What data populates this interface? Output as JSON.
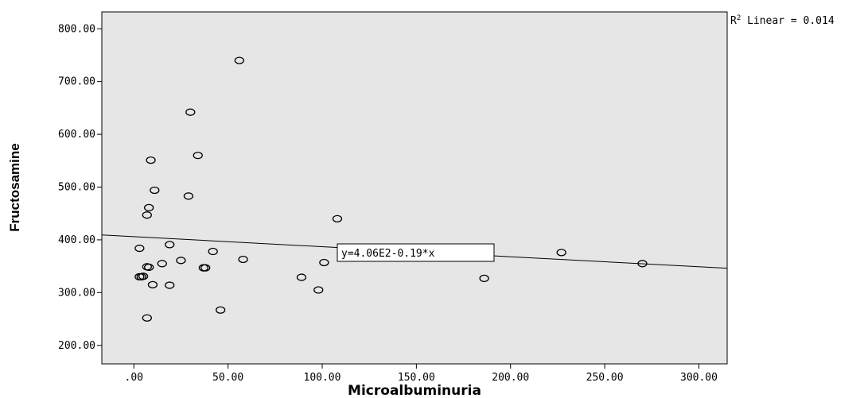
{
  "chart_data": {
    "type": "scatter",
    "xlabel": "Microalbuminuria",
    "ylabel": "Fructosamine",
    "xlim": [
      -17,
      315
    ],
    "ylim": [
      165,
      832
    ],
    "xticks": [
      ".00",
      "50.00",
      "100.00",
      "150.00",
      "200.00",
      "250.00",
      "300.00"
    ],
    "xtick_values": [
      0,
      50,
      100,
      150,
      200,
      250,
      300
    ],
    "yticks": [
      "200.00",
      "300.00",
      "400.00",
      "500.00",
      "600.00",
      "700.00",
      "800.00"
    ],
    "ytick_values": [
      200,
      300,
      400,
      500,
      600,
      700,
      800
    ],
    "points": [
      {
        "x": 56,
        "y": 740
      },
      {
        "x": 30,
        "y": 642
      },
      {
        "x": 34,
        "y": 560
      },
      {
        "x": 9,
        "y": 551
      },
      {
        "x": 11,
        "y": 494
      },
      {
        "x": 29,
        "y": 483
      },
      {
        "x": 8,
        "y": 461
      },
      {
        "x": 7,
        "y": 447
      },
      {
        "x": 108,
        "y": 440
      },
      {
        "x": 19,
        "y": 391
      },
      {
        "x": 3,
        "y": 384
      },
      {
        "x": 42,
        "y": 378
      },
      {
        "x": 227,
        "y": 376
      },
      {
        "x": 58,
        "y": 363
      },
      {
        "x": 25,
        "y": 361
      },
      {
        "x": 101,
        "y": 357
      },
      {
        "x": 15,
        "y": 355
      },
      {
        "x": 270,
        "y": 355
      },
      {
        "x": 7,
        "y": 349
      },
      {
        "x": 8,
        "y": 348
      },
      {
        "x": 37,
        "y": 347
      },
      {
        "x": 38,
        "y": 347
      },
      {
        "x": 3,
        "y": 330
      },
      {
        "x": 4,
        "y": 330
      },
      {
        "x": 5,
        "y": 331
      },
      {
        "x": 89,
        "y": 329
      },
      {
        "x": 186,
        "y": 327
      },
      {
        "x": 10,
        "y": 315
      },
      {
        "x": 19,
        "y": 314
      },
      {
        "x": 98,
        "y": 305
      },
      {
        "x": 46,
        "y": 267
      },
      {
        "x": 7,
        "y": 252
      }
    ],
    "fit_line": {
      "intercept": 406,
      "slope": -0.19
    },
    "fit_label": "y=4.06E2-0.19*x",
    "r2_label": "R² Linear = 0.014",
    "grid": false,
    "plot_background": "#e6e6e6",
    "marker_color": "#000000"
  }
}
